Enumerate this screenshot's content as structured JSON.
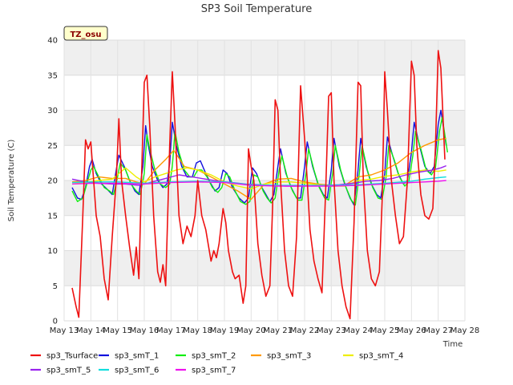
{
  "chart_data": {
    "type": "line",
    "title": "SP3 Soil Temperature",
    "xlabel": "Time",
    "ylabel": "Soil Temperature (C)",
    "annotation": "TZ_osu",
    "xlim": [
      13,
      28
    ],
    "ylim": [
      0,
      40
    ],
    "x_ticks": [
      13,
      14,
      15,
      16,
      17,
      18,
      19,
      20,
      21,
      22,
      23,
      24,
      25,
      26,
      27,
      28
    ],
    "x_tick_labels": [
      "May 13",
      "May 14",
      "May 15",
      "May 16",
      "May 17",
      "May 18",
      "May 19",
      "May 20",
      "May 21",
      "May 22",
      "May 23",
      "May 24",
      "May 25",
      "May 26",
      "May 27",
      "May 28"
    ],
    "y_ticks": [
      0,
      5,
      10,
      15,
      20,
      25,
      30,
      35,
      40
    ],
    "y_tick_labels": [
      "0",
      "5",
      "10",
      "15",
      "20",
      "25",
      "30",
      "35",
      "40"
    ],
    "legend_position": "bottom",
    "series": [
      {
        "name": "sp3_Tsurface",
        "color": "#ee1111",
        "x": [
          13.3,
          13.45,
          13.55,
          13.7,
          13.8,
          13.9,
          14.0,
          14.2,
          14.35,
          14.5,
          14.65,
          14.8,
          14.95,
          15.05,
          15.15,
          15.3,
          15.45,
          15.6,
          15.7,
          15.8,
          15.9,
          16.0,
          16.1,
          16.2,
          16.35,
          16.5,
          16.6,
          16.7,
          16.8,
          16.95,
          17.05,
          17.15,
          17.3,
          17.45,
          17.6,
          17.75,
          17.9,
          18.0,
          18.15,
          18.3,
          18.5,
          18.6,
          18.7,
          18.8,
          18.95,
          19.05,
          19.15,
          19.3,
          19.4,
          19.55,
          19.7,
          19.8,
          19.9,
          20.0,
          20.1,
          20.25,
          20.4,
          20.55,
          20.7,
          20.8,
          20.9,
          21.0,
          21.1,
          21.25,
          21.4,
          21.55,
          21.7,
          21.85,
          22.0,
          22.1,
          22.2,
          22.35,
          22.5,
          22.65,
          22.8,
          22.9,
          23.0,
          23.1,
          23.25,
          23.4,
          23.55,
          23.7,
          23.85,
          24.0,
          24.1,
          24.2,
          24.35,
          24.5,
          24.65,
          24.8,
          24.9,
          25.0,
          25.1,
          25.25,
          25.4,
          25.55,
          25.7,
          25.85,
          26.0,
          26.1,
          26.2,
          26.35,
          26.5,
          26.65,
          26.8,
          26.9,
          27.0,
          27.1,
          27.25
        ],
        "y": [
          4.7,
          2.0,
          0.5,
          15.0,
          25.8,
          24.5,
          25.5,
          15.0,
          12.0,
          6.0,
          3.0,
          12.0,
          20.0,
          28.8,
          20.0,
          15.0,
          10.5,
          6.5,
          10.5,
          6.0,
          21.0,
          34.0,
          35.0,
          28.0,
          15.0,
          7.0,
          5.5,
          8.0,
          5.0,
          25.0,
          35.5,
          28.0,
          15.0,
          11.0,
          13.5,
          12.0,
          15.0,
          20.0,
          15.0,
          13.0,
          8.5,
          10.0,
          9.0,
          11.0,
          16.0,
          14.0,
          10.0,
          7.0,
          6.0,
          6.5,
          2.5,
          5.0,
          24.5,
          22.0,
          20.0,
          11.0,
          6.5,
          3.5,
          5.0,
          16.0,
          31.5,
          30.0,
          20.0,
          10.0,
          5.0,
          3.5,
          12.0,
          33.5,
          26.0,
          20.0,
          13.0,
          8.5,
          6.0,
          4.0,
          20.0,
          32.0,
          32.5,
          20.0,
          10.0,
          5.0,
          2.0,
          0.3,
          14.0,
          34.0,
          33.5,
          20.0,
          10.0,
          6.0,
          5.0,
          7.0,
          17.0,
          35.5,
          30.0,
          20.0,
          15.0,
          11.0,
          12.0,
          20.0,
          37.0,
          35.0,
          25.0,
          18.0,
          15.0,
          14.5,
          16.0,
          25.0,
          38.5,
          36.0,
          23.0
        ]
      },
      {
        "name": "sp3_smT_1",
        "color": "#1111dd",
        "x": [
          13.3,
          13.5,
          13.65,
          13.8,
          13.95,
          14.05,
          14.2,
          14.4,
          14.6,
          14.8,
          14.95,
          15.05,
          15.25,
          15.45,
          15.65,
          15.8,
          15.95,
          16.05,
          16.15,
          16.3,
          16.5,
          16.7,
          16.85,
          16.95,
          17.05,
          17.2,
          17.4,
          17.6,
          17.8,
          17.95,
          18.1,
          18.3,
          18.5,
          18.65,
          18.8,
          18.95,
          19.1,
          19.3,
          19.55,
          19.75,
          19.9,
          20.05,
          20.2,
          20.4,
          20.55,
          20.7,
          20.85,
          21.0,
          21.1,
          21.3,
          21.5,
          21.7,
          21.85,
          22.0,
          22.1,
          22.3,
          22.5,
          22.7,
          22.85,
          23.0,
          23.1,
          23.3,
          23.5,
          23.7,
          23.85,
          24.0,
          24.1,
          24.3,
          24.5,
          24.7,
          24.85,
          25.0,
          25.1,
          25.3,
          25.5,
          25.7,
          25.85,
          26.0,
          26.1,
          26.3,
          26.5,
          26.7,
          26.85,
          27.0,
          27.1,
          27.3
        ],
        "y": [
          19.0,
          17.5,
          17.3,
          19.0,
          22.0,
          23.0,
          21.0,
          19.5,
          18.8,
          18.0,
          21.5,
          23.6,
          22.0,
          20.0,
          18.5,
          18.0,
          22.0,
          27.8,
          25.0,
          22.0,
          20.0,
          19.0,
          19.5,
          22.5,
          28.3,
          25.0,
          22.0,
          20.5,
          20.5,
          22.5,
          22.8,
          21.0,
          19.5,
          18.5,
          19.0,
          21.5,
          21.0,
          19.0,
          17.5,
          16.8,
          17.5,
          21.8,
          21.0,
          19.0,
          18.0,
          17.0,
          18.0,
          22.0,
          24.5,
          21.0,
          19.0,
          17.5,
          17.5,
          22.0,
          25.5,
          22.0,
          19.5,
          18.0,
          17.5,
          21.5,
          26.0,
          22.0,
          19.5,
          17.5,
          16.5,
          21.5,
          26.0,
          22.0,
          19.5,
          18.0,
          17.5,
          21.0,
          26.2,
          23.5,
          21.0,
          19.5,
          20.0,
          24.0,
          28.3,
          25.0,
          22.0,
          21.0,
          22.0,
          28.0,
          30.0,
          25.0
        ]
      },
      {
        "name": "sp3_smT_2",
        "color": "#11ee11",
        "x": [
          13.3,
          13.5,
          13.7,
          13.85,
          14.0,
          14.1,
          14.3,
          14.5,
          14.7,
          14.85,
          15.0,
          15.1,
          15.3,
          15.5,
          15.7,
          15.85,
          16.0,
          16.1,
          16.2,
          16.4,
          16.6,
          16.8,
          16.95,
          17.05,
          17.15,
          17.3,
          17.5,
          17.7,
          17.85,
          18.0,
          18.15,
          18.35,
          18.55,
          18.75,
          18.9,
          19.05,
          19.2,
          19.4,
          19.6,
          19.8,
          19.95,
          20.1,
          20.25,
          20.45,
          20.6,
          20.75,
          20.9,
          21.05,
          21.15,
          21.35,
          21.55,
          21.75,
          21.9,
          22.05,
          22.15,
          22.35,
          22.55,
          22.75,
          22.9,
          23.05,
          23.15,
          23.35,
          23.55,
          23.75,
          23.9,
          24.05,
          24.15,
          24.35,
          24.55,
          24.75,
          24.9,
          25.05,
          25.15,
          25.35,
          25.55,
          25.75,
          25.9,
          26.05,
          26.15,
          26.35,
          26.55,
          26.75,
          26.9,
          27.05,
          27.15,
          27.35
        ],
        "y": [
          18.5,
          17.0,
          17.5,
          19.5,
          21.5,
          22.0,
          20.5,
          19.0,
          18.5,
          18.0,
          20.5,
          22.5,
          21.5,
          19.5,
          18.5,
          18.0,
          21.0,
          26.5,
          24.5,
          21.5,
          19.5,
          19.0,
          19.5,
          22.0,
          27.0,
          24.0,
          21.5,
          20.5,
          20.5,
          21.5,
          21.5,
          20.5,
          19.0,
          18.3,
          19.0,
          21.0,
          20.5,
          18.5,
          17.0,
          16.6,
          17.0,
          20.8,
          20.5,
          18.5,
          17.5,
          16.8,
          17.5,
          21.5,
          23.5,
          20.5,
          18.5,
          17.2,
          17.2,
          21.0,
          24.5,
          21.5,
          19.0,
          17.5,
          17.2,
          21.0,
          25.0,
          21.5,
          19.0,
          17.2,
          16.5,
          21.0,
          25.0,
          21.5,
          19.0,
          17.5,
          17.3,
          20.5,
          25.0,
          23.0,
          20.5,
          19.2,
          19.8,
          23.5,
          27.0,
          24.5,
          21.5,
          20.8,
          21.8,
          27.0,
          29.0,
          24.0
        ]
      },
      {
        "name": "sp3_smT_3",
        "color": "#ff9900",
        "x": [
          13.3,
          13.8,
          14.3,
          14.8,
          15.3,
          15.7,
          16.0,
          16.4,
          16.8,
          17.1,
          17.5,
          18.0,
          18.5,
          19.0,
          19.5,
          20.0,
          20.5,
          21.0,
          21.5,
          22.0,
          22.5,
          23.0,
          23.5,
          24.0,
          24.5,
          25.0,
          25.5,
          26.0,
          26.5,
          27.0,
          27.3
        ],
        "y": [
          19.8,
          20.0,
          20.5,
          20.3,
          20.3,
          19.8,
          19.5,
          21.5,
          23.0,
          24.3,
          22.0,
          21.5,
          20.5,
          19.5,
          18.5,
          17.3,
          19.5,
          20.2,
          20.3,
          19.8,
          19.5,
          19.3,
          19.3,
          20.5,
          20.8,
          21.5,
          22.5,
          24.0,
          25.0,
          25.8,
          26.0
        ]
      },
      {
        "name": "sp3_smT_4",
        "color": "#eeee00",
        "x": [
          13.3,
          13.8,
          14.3,
          14.8,
          15.3,
          15.7,
          16.0,
          16.4,
          16.8,
          17.2,
          17.6,
          18.0,
          18.5,
          19.0,
          19.5,
          20.0,
          20.5,
          21.0,
          21.5,
          22.0,
          22.5,
          23.0,
          23.5,
          24.0,
          24.5,
          25.0,
          25.5,
          26.0,
          26.5,
          27.0,
          27.3
        ],
        "y": [
          19.5,
          19.7,
          20.0,
          20.2,
          21.8,
          20.5,
          19.8,
          20.5,
          21.0,
          21.5,
          21.8,
          21.5,
          20.8,
          19.8,
          19.2,
          18.8,
          19.5,
          19.8,
          19.8,
          19.6,
          19.4,
          19.2,
          19.2,
          20.0,
          20.2,
          20.6,
          20.8,
          21.2,
          21.5,
          21.3,
          21.5
        ]
      },
      {
        "name": "sp3_smT_5",
        "color": "#9922ee",
        "x": [
          13.3,
          13.8,
          14.3,
          14.8,
          15.3,
          15.8,
          16.3,
          16.8,
          17.3,
          17.8,
          18.3,
          18.8,
          19.3,
          19.8,
          20.3,
          20.8,
          21.3,
          21.8,
          22.3,
          22.8,
          23.3,
          23.8,
          24.3,
          24.8,
          25.3,
          25.8,
          26.3,
          26.8,
          27.1,
          27.3
        ],
        "y": [
          20.2,
          19.8,
          19.6,
          19.5,
          19.5,
          19.3,
          19.8,
          20.3,
          20.8,
          20.5,
          20.2,
          19.9,
          19.7,
          19.5,
          19.4,
          19.3,
          19.2,
          19.2,
          19.3,
          19.3,
          19.4,
          19.6,
          19.9,
          20.0,
          20.3,
          20.8,
          21.2,
          21.5,
          21.8,
          22.1
        ]
      },
      {
        "name": "sp3_smT_6",
        "color": "#11dddd",
        "x": [
          13.3,
          14.0,
          15.0,
          16.0,
          17.0,
          18.0,
          19.0,
          20.0,
          21.0,
          22.0,
          23.0,
          24.0,
          25.0,
          26.0,
          26.5,
          27.0,
          27.3
        ],
        "y": [
          19.7,
          19.8,
          19.8,
          19.6,
          19.8,
          19.9,
          19.8,
          19.4,
          19.3,
          19.3,
          19.3,
          19.4,
          19.6,
          19.9,
          20.2,
          20.4,
          20.5
        ]
      },
      {
        "name": "sp3_smT_7",
        "color": "#ee11ee",
        "x": [
          13.3,
          14.0,
          15.0,
          16.0,
          17.0,
          18.0,
          19.0,
          20.0,
          21.0,
          22.0,
          23.0,
          24.0,
          25.0,
          26.0,
          26.5,
          27.0,
          27.3
        ],
        "y": [
          19.5,
          19.6,
          19.6,
          19.5,
          19.7,
          19.8,
          19.7,
          19.3,
          19.2,
          19.2,
          19.2,
          19.3,
          19.5,
          19.7,
          19.8,
          19.9,
          20.0
        ]
      }
    ]
  }
}
